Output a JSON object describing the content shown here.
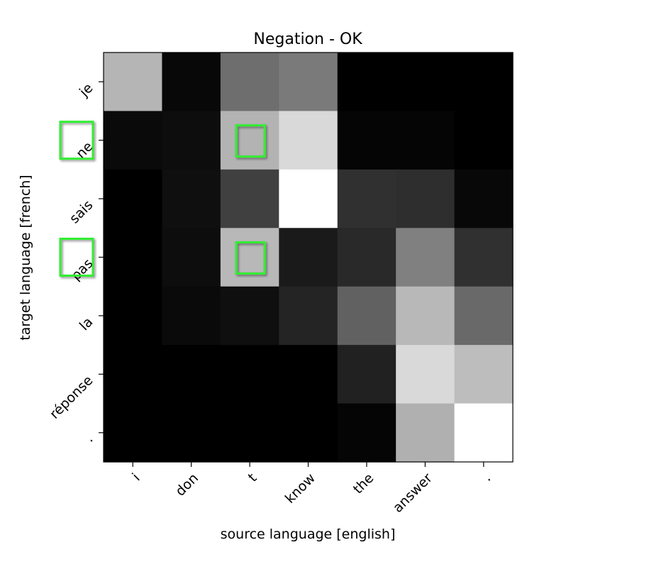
{
  "chart_data": {
    "type": "heatmap",
    "title": "Negation - OK",
    "xlabel": "source language [english]",
    "ylabel": "target language [french]",
    "x_tokens": [
      "i",
      "don",
      "t",
      "know",
      "the",
      "answer",
      "."
    ],
    "y_tokens": [
      "je",
      "ne",
      "sais",
      "pas",
      "la",
      "réponse",
      "."
    ],
    "value_range": [
      0,
      1
    ],
    "colormap": "gray",
    "grid": false,
    "values": [
      [
        0.71,
        0.03,
        0.43,
        0.48,
        0.0,
        0.0,
        0.0
      ],
      [
        0.04,
        0.05,
        0.7,
        0.85,
        0.02,
        0.02,
        0.0
      ],
      [
        0.0,
        0.06,
        0.25,
        1.0,
        0.19,
        0.18,
        0.03
      ],
      [
        0.0,
        0.05,
        0.72,
        0.1,
        0.16,
        0.5,
        0.19
      ],
      [
        0.0,
        0.04,
        0.06,
        0.14,
        0.38,
        0.72,
        0.41
      ],
      [
        0.0,
        0.0,
        0.0,
        0.0,
        0.13,
        0.85,
        0.74
      ],
      [
        0.0,
        0.0,
        0.0,
        0.0,
        0.02,
        0.69,
        1.0
      ]
    ],
    "highlights": {
      "color": "#33ee33",
      "cells": [
        {
          "row": 1,
          "col": 2
        },
        {
          "row": 3,
          "col": 2
        }
      ],
      "labels": [
        {
          "axis": "y",
          "index": 1
        },
        {
          "axis": "y",
          "index": 3
        }
      ]
    }
  }
}
